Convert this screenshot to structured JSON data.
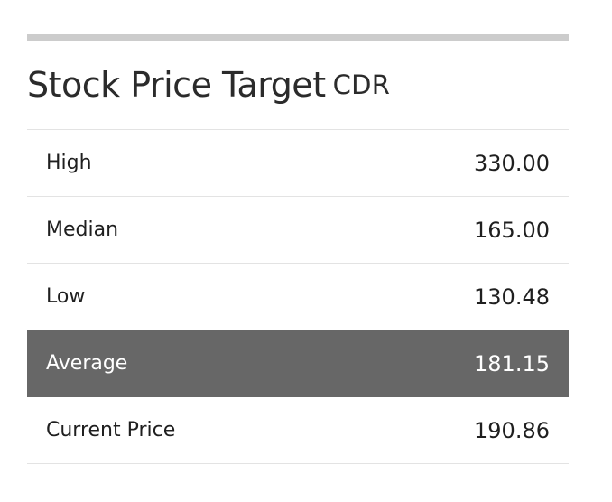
{
  "title": {
    "main": "Stock Price Target",
    "ticker": "CDR"
  },
  "rows": [
    {
      "label": "High",
      "value": "330.00"
    },
    {
      "label": "Median",
      "value": "165.00"
    },
    {
      "label": "Low",
      "value": "130.48"
    },
    {
      "label": "Average",
      "value": "181.15"
    },
    {
      "label": "Current Price",
      "value": "190.86"
    }
  ],
  "colors": {
    "highlight_background": "#676767",
    "highlight_text": "#ffffff",
    "top_rule": "#cccccc"
  }
}
